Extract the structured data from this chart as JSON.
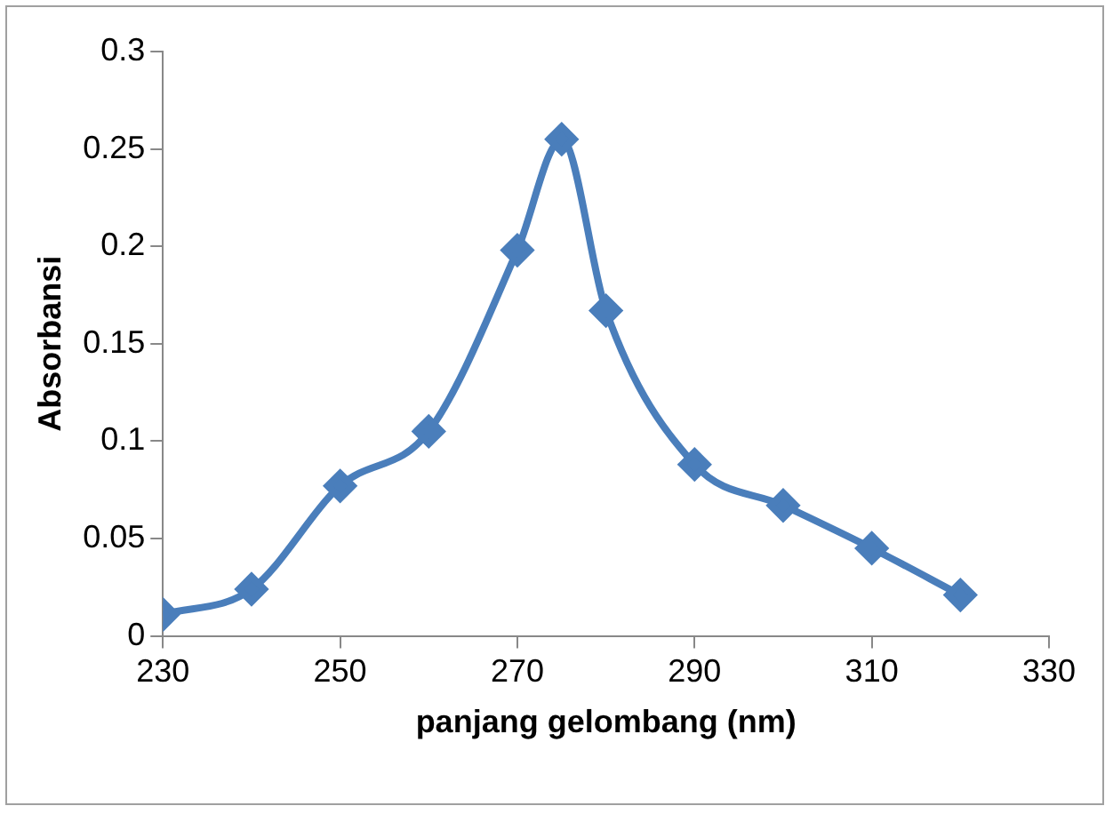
{
  "chart_data": {
    "type": "line",
    "xlabel": "panjang gelombang (nm)",
    "ylabel": "Absorbansi",
    "x": [
      230,
      240,
      250,
      260,
      270,
      275,
      280,
      290,
      300,
      310,
      320
    ],
    "series": [
      {
        "color": "#4a7ebb",
        "values": [
          0.011,
          0.024,
          0.077,
          0.105,
          0.198,
          0.255,
          0.167,
          0.088,
          0.067,
          0.045,
          0.021
        ]
      }
    ],
    "xlim": [
      230,
      330
    ],
    "xticks": [
      230,
      250,
      270,
      290,
      310,
      330
    ],
    "ylim": [
      0,
      0.3
    ],
    "yticks": [
      0,
      0.05,
      0.1,
      0.15,
      0.2,
      0.25,
      0.3
    ],
    "grid": false,
    "legend": false,
    "marker": "diamond",
    "line_style": "solid"
  }
}
